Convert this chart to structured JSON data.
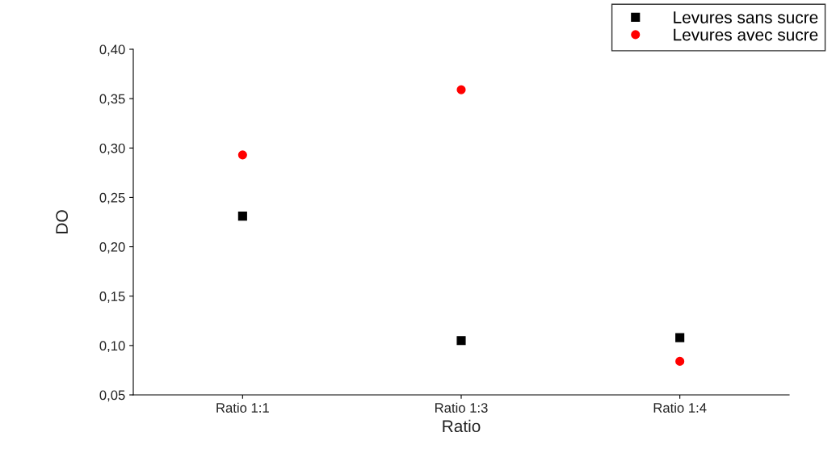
{
  "chart_data": {
    "type": "scatter",
    "xlabel": "Ratio",
    "ylabel": "DO",
    "categories": [
      "Ratio 1:1",
      "Ratio 1:3",
      "Ratio 1:4"
    ],
    "series": [
      {
        "name": "Levures sans sucre",
        "color": "#000000",
        "marker": "square",
        "values": [
          0.231,
          0.105,
          0.108
        ]
      },
      {
        "name": "Levures avec sucre",
        "color": "#ff0000",
        "marker": "circle",
        "values": [
          0.293,
          0.359,
          0.084
        ]
      }
    ],
    "ylim": [
      0.05,
      0.4
    ],
    "yticks": [
      {
        "value": 0.05,
        "label": "0,05"
      },
      {
        "value": 0.1,
        "label": "0,10"
      },
      {
        "value": 0.15,
        "label": "0,15"
      },
      {
        "value": 0.2,
        "label": "0,20"
      },
      {
        "value": 0.25,
        "label": "0,25"
      },
      {
        "value": 0.3,
        "label": "0,30"
      },
      {
        "value": 0.35,
        "label": "0,35"
      },
      {
        "value": 0.4,
        "label": "0,40"
      }
    ],
    "grid": false,
    "legend": "top right"
  }
}
